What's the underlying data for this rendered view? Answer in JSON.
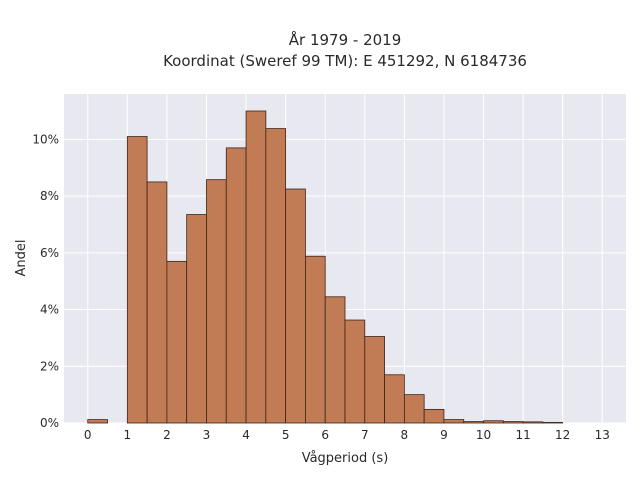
{
  "chart_data": {
    "type": "bar",
    "title_line1": "År 1979 - 2019",
    "title_line2": "Koordinat (Sweref 99 TM): E 451292, N 6184736",
    "xlabel": "Vågperiod (s)",
    "ylabel": "Andel",
    "bin_width": 0.5,
    "bin_starts": [
      0,
      0.5,
      1,
      1.5,
      2,
      2.5,
      3,
      3.5,
      4,
      4.5,
      5,
      5.5,
      6,
      6.5,
      7,
      7.5,
      8,
      8.5,
      9,
      9.5,
      10,
      10.5,
      11,
      11.5,
      12
    ],
    "values": [
      0.12,
      0,
      10.1,
      8.5,
      5.7,
      7.35,
      8.58,
      9.7,
      11.0,
      10.38,
      8.25,
      5.88,
      4.45,
      3.63,
      3.05,
      1.7,
      1.0,
      0.48,
      0.12,
      0.05,
      0.08,
      0.05,
      0.04,
      0.02,
      0
    ],
    "xticks": [
      0,
      1,
      2,
      3,
      4,
      5,
      6,
      7,
      8,
      9,
      10,
      11,
      12,
      13
    ],
    "yticks": [
      0,
      2,
      4,
      6,
      8,
      10
    ],
    "ytick_suffix": "%",
    "xlim": [
      -0.6,
      13.6
    ],
    "ylim": [
      0,
      11.6
    ],
    "grid": true,
    "bar_color": "#c17c55",
    "bar_edge_color": "#3d2418",
    "plot_background": "#e8e8f1",
    "grid_color": "#ffffff"
  }
}
